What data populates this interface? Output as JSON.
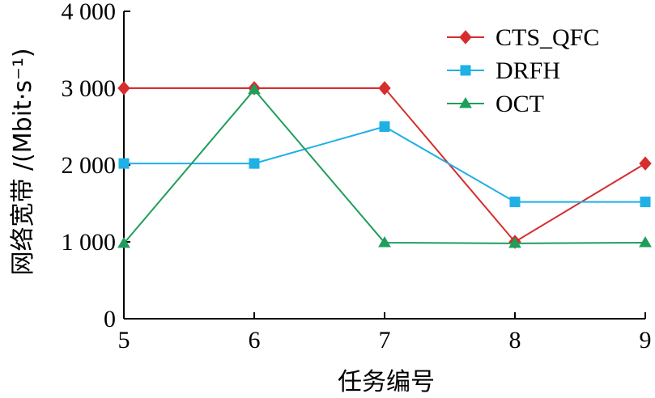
{
  "chart_data": {
    "type": "line",
    "title": "",
    "xlabel": "任务编号",
    "ylabel": "网络宽带 /(Mbit·s⁻¹)",
    "x": [
      5,
      6,
      7,
      8,
      9
    ],
    "xticks": [
      "5",
      "6",
      "7",
      "8",
      "9"
    ],
    "yticks": [
      {
        "value": 0,
        "label": "0"
      },
      {
        "value": 1000,
        "label": "1 000"
      },
      {
        "value": 2000,
        "label": "2 000"
      },
      {
        "value": 3000,
        "label": "3 000"
      },
      {
        "value": 4000,
        "label": "4 000"
      }
    ],
    "xlim": [
      5,
      9
    ],
    "ylim": [
      0,
      4000
    ],
    "grid": false,
    "legend_position": "top-right",
    "series": [
      {
        "name": "CTS_QFC",
        "color": "#d62d2d",
        "marker": "diamond",
        "values": [
          3000,
          3000,
          3000,
          1000,
          2020
        ]
      },
      {
        "name": "DRFH",
        "color": "#1fb0e6",
        "marker": "square",
        "values": [
          2020,
          2020,
          2500,
          1520,
          1520
        ]
      },
      {
        "name": "OCT",
        "color": "#1f9e5b",
        "marker": "triangle",
        "values": [
          980,
          2980,
          990,
          980,
          990
        ]
      }
    ]
  }
}
